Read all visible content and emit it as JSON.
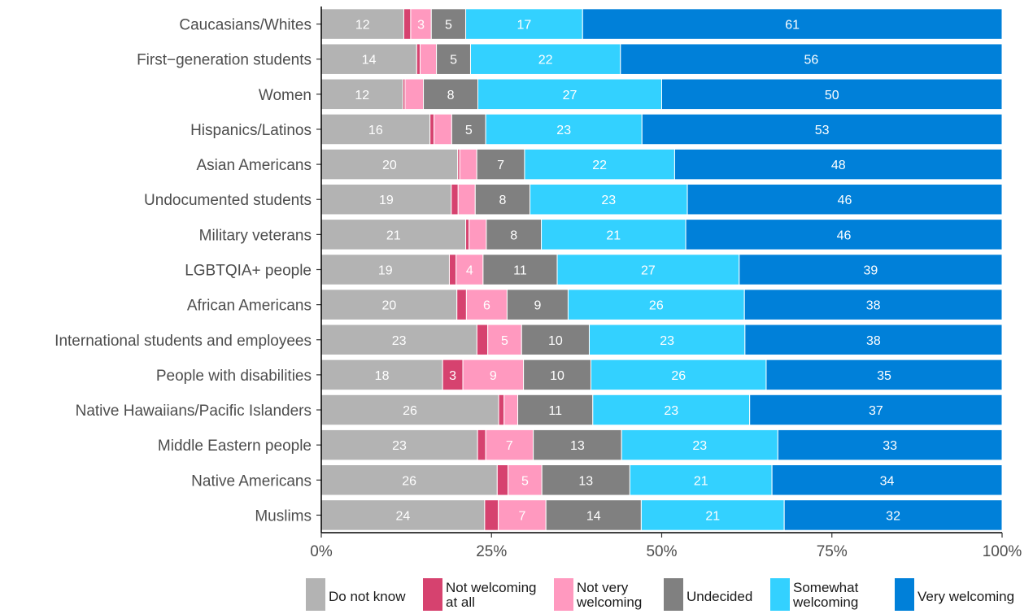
{
  "chart_data": {
    "type": "bar",
    "orientation": "horizontal",
    "stacked": true,
    "normalized_percent": true,
    "xlim": [
      0,
      100
    ],
    "x_ticks": [
      "0%",
      "25%",
      "50%",
      "75%",
      "100%"
    ],
    "legend_position": "bottom",
    "categories": [
      "Caucasians/Whites",
      "First−generation students",
      "Women",
      "Hispanics/Latinos",
      "Asian Americans",
      "Undocumented students",
      "Military veterans",
      "LGBTQIA+ people",
      "African Americans",
      "International students and employees",
      "People with disabilities",
      "Native Hawaiians/Pacific Islanders",
      "Middle Eastern people",
      "Native Americans",
      "Muslims"
    ],
    "series": [
      {
        "name": "Do not know",
        "legend_lines": [
          "Do not know"
        ],
        "color": "#b3b3b3",
        "values": [
          12,
          14,
          12,
          16,
          20,
          19,
          21,
          19,
          20,
          23,
          18,
          26,
          23,
          26,
          24
        ]
      },
      {
        "name": "Not welcoming at all",
        "legend_lines": [
          "Not welcoming",
          "at all"
        ],
        "color": "#d6426f",
        "values": [
          1,
          0.5,
          0.3,
          0.6,
          0.3,
          1,
          0.5,
          1,
          1.4,
          1.6,
          3,
          0.8,
          1.2,
          1.6,
          2
        ]
      },
      {
        "name": "Not very welcoming",
        "legend_lines": [
          "Not very",
          "welcoming"
        ],
        "color": "#ff99bf",
        "values": [
          3,
          2.4,
          2.7,
          2.6,
          2.5,
          2.5,
          2.5,
          4,
          6,
          5,
          9,
          2,
          7,
          5,
          7
        ]
      },
      {
        "name": "Undecided",
        "legend_lines": [
          "Undecided"
        ],
        "color": "#808080",
        "values": [
          5,
          5,
          8,
          5,
          7,
          8,
          8,
          11,
          9,
          10,
          10,
          11,
          13,
          13,
          14
        ]
      },
      {
        "name": "Somewhat welcoming",
        "legend_lines": [
          "Somewhat",
          "welcoming"
        ],
        "color": "#33d1ff",
        "values": [
          17,
          22,
          27,
          23,
          22,
          23,
          21,
          27,
          26,
          23,
          26,
          23,
          23,
          21,
          21
        ]
      },
      {
        "name": "Very welcoming",
        "legend_lines": [
          "Very welcoming"
        ],
        "color": "#0080d9",
        "values": [
          61,
          56,
          50,
          53,
          48,
          46,
          46,
          39,
          38,
          38,
          35,
          37,
          33,
          34,
          32
        ]
      }
    ],
    "label_min_value": 2.95,
    "grid": false
  }
}
